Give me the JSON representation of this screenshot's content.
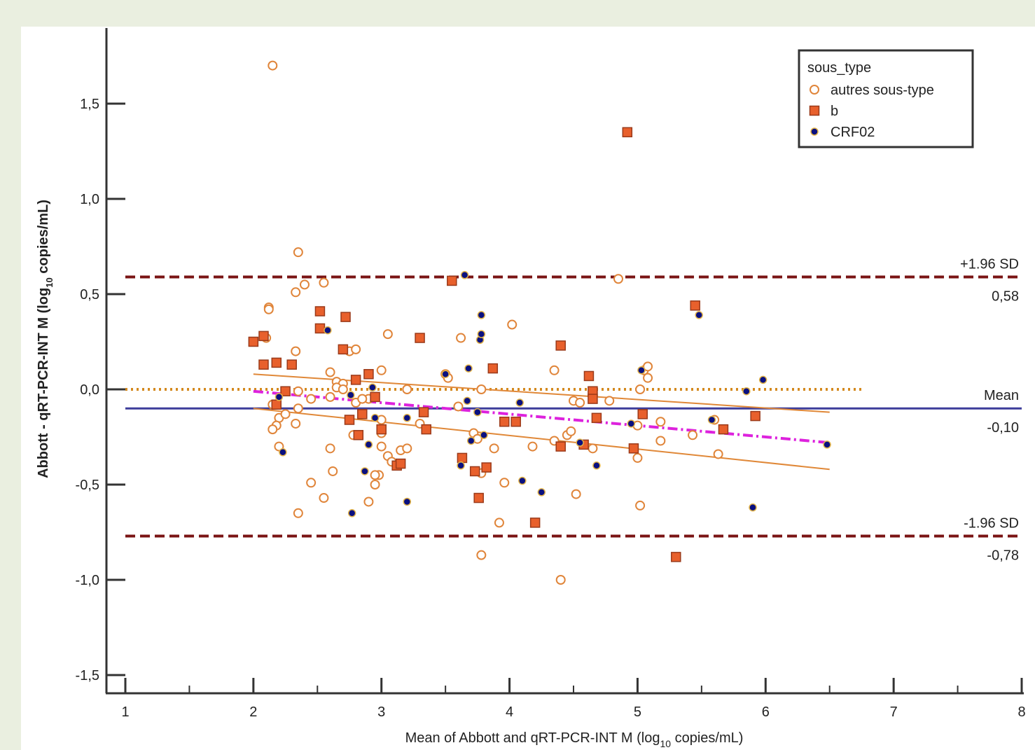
{
  "chart_data": {
    "type": "scatter",
    "title": "",
    "xlabel": "Mean of Abbott and qRT-PCR-INT M",
    "xlabel_unit": "(log",
    "xlabel_sub": "10",
    "xlabel_unit_end": " copies/mL)",
    "ylabel": "Abbott - qRT-PCR-INT M",
    "ylabel_unit": "(log",
    "ylabel_sub": "10",
    "ylabel_unit_end": " copies/mL)",
    "xlim": [
      1,
      8
    ],
    "ylim": [
      -1.6,
      1.9
    ],
    "x_ticks": [
      1,
      2,
      3,
      4,
      5,
      6,
      7,
      8
    ],
    "x_tick_labels": [
      "1",
      "2",
      "3",
      "4",
      "5",
      "6",
      "7",
      "8"
    ],
    "y_ticks": [
      -1.5,
      -1.0,
      -0.5,
      0.0,
      0.5,
      1.0,
      1.5
    ],
    "y_tick_labels": [
      "-1,5",
      "-1,0",
      "-0,5",
      "0,0",
      "0,5",
      "1,0",
      "1,5"
    ],
    "grid": false,
    "legend": {
      "title": "sous_type",
      "placement": "top-right",
      "entries": [
        {
          "label": "autres sous-type",
          "marker": "open-circle",
          "color": "#e0853a"
        },
        {
          "label": "b",
          "marker": "square",
          "color": "#e8602c"
        },
        {
          "label": "CRF02",
          "marker": "dot",
          "color": "#0a1080"
        }
      ]
    },
    "reference_lines": [
      {
        "name": "upper",
        "y": 0.59,
        "x_range": [
          1,
          8
        ],
        "style": "dashed",
        "color": "#7a1414",
        "label_top": "+1.96 SD",
        "label_bottom": "0,58"
      },
      {
        "name": "mean",
        "y": -0.1,
        "x_range": [
          1,
          8
        ],
        "style": "solid",
        "color": "#3d3d9a",
        "label_top": "Mean",
        "label_bottom": "-0,10"
      },
      {
        "name": "lower",
        "y": -0.77,
        "x_range": [
          1,
          8
        ],
        "style": "dashed",
        "color": "#7a1414",
        "label_top": "-1.96 SD",
        "label_bottom": "-0,78"
      },
      {
        "name": "zero",
        "y": 0.0,
        "x_range": [
          1,
          6.75
        ],
        "style": "dotted",
        "color": "#d4891e"
      }
    ],
    "fit_lines": [
      {
        "name": "regression",
        "x": [
          2.0,
          6.5
        ],
        "y": [
          -0.01,
          -0.28
        ],
        "style": "dash-dot",
        "color": "#dd22dd"
      },
      {
        "name": "upper-band",
        "x": [
          2.0,
          6.5
        ],
        "y": [
          0.08,
          -0.12
        ],
        "style": "solid",
        "color": "#e08838"
      },
      {
        "name": "lower-band",
        "x": [
          2.0,
          6.5
        ],
        "y": [
          -0.1,
          -0.42
        ],
        "style": "solid",
        "color": "#e08838"
      }
    ],
    "series": [
      {
        "name": "autres sous-type",
        "marker": "open-circle",
        "points": [
          [
            2.15,
            1.7
          ],
          [
            2.35,
            0.72
          ],
          [
            2.12,
            0.43
          ],
          [
            2.12,
            0.42
          ],
          [
            2.33,
            0.51
          ],
          [
            2.4,
            0.55
          ],
          [
            2.55,
            0.56
          ],
          [
            2.33,
            0.2
          ],
          [
            2.1,
            0.27
          ],
          [
            2.6,
            0.09
          ],
          [
            2.65,
            0.04
          ],
          [
            2.7,
            0.03
          ],
          [
            2.65,
            0.01
          ],
          [
            2.7,
            0.0
          ],
          [
            2.75,
            0.2
          ],
          [
            2.8,
            0.21
          ],
          [
            3.0,
            0.1
          ],
          [
            3.05,
            0.29
          ],
          [
            3.2,
            0.0
          ],
          [
            2.35,
            -0.01
          ],
          [
            2.45,
            -0.05
          ],
          [
            2.6,
            -0.04
          ],
          [
            2.8,
            -0.07
          ],
          [
            2.9,
            -0.05
          ],
          [
            3.0,
            -0.16
          ],
          [
            2.15,
            -0.08
          ],
          [
            2.2,
            -0.15
          ],
          [
            2.25,
            -0.13
          ],
          [
            2.18,
            -0.19
          ],
          [
            2.15,
            -0.21
          ],
          [
            2.35,
            -0.1
          ],
          [
            2.33,
            -0.18
          ],
          [
            2.2,
            -0.3
          ],
          [
            2.35,
            -0.65
          ],
          [
            2.45,
            -0.49
          ],
          [
            2.55,
            -0.57
          ],
          [
            2.6,
            -0.31
          ],
          [
            2.62,
            -0.43
          ],
          [
            2.78,
            -0.24
          ],
          [
            2.85,
            -0.05
          ],
          [
            2.9,
            -0.59
          ],
          [
            2.95,
            -0.5
          ],
          [
            2.98,
            -0.45
          ],
          [
            2.95,
            -0.45
          ],
          [
            3.0,
            -0.23
          ],
          [
            3.0,
            -0.3
          ],
          [
            3.05,
            -0.35
          ],
          [
            3.08,
            -0.38
          ],
          [
            3.15,
            -0.32
          ],
          [
            3.2,
            -0.31
          ],
          [
            3.3,
            -0.18
          ],
          [
            3.5,
            0.08
          ],
          [
            3.52,
            0.06
          ],
          [
            3.6,
            -0.09
          ],
          [
            3.62,
            0.27
          ],
          [
            3.72,
            -0.23
          ],
          [
            3.75,
            -0.26
          ],
          [
            3.78,
            0.0
          ],
          [
            3.78,
            -0.44
          ],
          [
            3.78,
            -0.87
          ],
          [
            3.88,
            -0.31
          ],
          [
            3.92,
            -0.7
          ],
          [
            3.96,
            -0.49
          ],
          [
            4.02,
            0.34
          ],
          [
            4.18,
            -0.3
          ],
          [
            4.35,
            0.1
          ],
          [
            4.35,
            -0.27
          ],
          [
            4.4,
            -1.0
          ],
          [
            4.45,
            -0.24
          ],
          [
            4.48,
            -0.22
          ],
          [
            4.5,
            -0.06
          ],
          [
            4.55,
            -0.07
          ],
          [
            4.52,
            -0.55
          ],
          [
            4.65,
            -0.31
          ],
          [
            4.78,
            -0.06
          ],
          [
            4.85,
            0.58
          ],
          [
            5.0,
            -0.19
          ],
          [
            5.0,
            -0.36
          ],
          [
            5.02,
            0.0
          ],
          [
            5.02,
            -0.61
          ],
          [
            5.05,
            0.1
          ],
          [
            5.08,
            0.12
          ],
          [
            5.08,
            0.06
          ],
          [
            5.18,
            -0.17
          ],
          [
            5.18,
            -0.27
          ],
          [
            5.43,
            -0.24
          ],
          [
            5.6,
            -0.16
          ],
          [
            5.63,
            -0.34
          ]
        ]
      },
      {
        "name": "b",
        "marker": "square",
        "points": [
          [
            2.0,
            0.25
          ],
          [
            2.08,
            0.28
          ],
          [
            2.08,
            0.13
          ],
          [
            2.18,
            0.14
          ],
          [
            2.3,
            0.13
          ],
          [
            2.18,
            -0.08
          ],
          [
            2.25,
            -0.01
          ],
          [
            2.52,
            0.41
          ],
          [
            2.52,
            0.32
          ],
          [
            2.72,
            0.38
          ],
          [
            2.7,
            0.21
          ],
          [
            2.8,
            0.05
          ],
          [
            2.9,
            0.08
          ],
          [
            2.85,
            -0.13
          ],
          [
            2.75,
            -0.16
          ],
          [
            2.82,
            -0.24
          ],
          [
            2.95,
            -0.04
          ],
          [
            3.0,
            -0.21
          ],
          [
            3.12,
            -0.4
          ],
          [
            3.15,
            -0.39
          ],
          [
            3.3,
            0.27
          ],
          [
            3.33,
            -0.12
          ],
          [
            3.35,
            -0.21
          ],
          [
            3.55,
            0.57
          ],
          [
            3.63,
            -0.36
          ],
          [
            3.73,
            -0.43
          ],
          [
            3.76,
            -0.57
          ],
          [
            3.82,
            -0.41
          ],
          [
            3.87,
            0.11
          ],
          [
            3.96,
            -0.17
          ],
          [
            4.05,
            -0.17
          ],
          [
            4.2,
            -0.7
          ],
          [
            4.4,
            0.23
          ],
          [
            4.4,
            -0.3
          ],
          [
            4.58,
            -0.29
          ],
          [
            4.62,
            0.07
          ],
          [
            4.65,
            -0.01
          ],
          [
            4.65,
            -0.05
          ],
          [
            4.68,
            -0.15
          ],
          [
            4.92,
            1.35
          ],
          [
            4.97,
            -0.31
          ],
          [
            5.04,
            -0.13
          ],
          [
            5.3,
            -0.88
          ],
          [
            5.45,
            0.44
          ],
          [
            5.67,
            -0.21
          ],
          [
            5.92,
            -0.14
          ]
        ]
      },
      {
        "name": "CRF02",
        "marker": "dot",
        "points": [
          [
            2.2,
            -0.04
          ],
          [
            2.23,
            -0.33
          ],
          [
            2.58,
            0.31
          ],
          [
            2.76,
            -0.03
          ],
          [
            2.77,
            -0.65
          ],
          [
            2.87,
            -0.43
          ],
          [
            2.9,
            -0.29
          ],
          [
            2.93,
            0.01
          ],
          [
            2.95,
            -0.15
          ],
          [
            3.2,
            -0.15
          ],
          [
            3.2,
            -0.59
          ],
          [
            3.5,
            0.08
          ],
          [
            3.62,
            -0.4
          ],
          [
            3.65,
            0.6
          ],
          [
            3.67,
            -0.06
          ],
          [
            3.68,
            0.11
          ],
          [
            3.7,
            -0.27
          ],
          [
            3.75,
            -0.12
          ],
          [
            3.77,
            0.26
          ],
          [
            3.78,
            0.29
          ],
          [
            3.78,
            0.39
          ],
          [
            3.8,
            -0.24
          ],
          [
            4.08,
            -0.07
          ],
          [
            4.1,
            -0.48
          ],
          [
            4.25,
            -0.54
          ],
          [
            4.55,
            -0.28
          ],
          [
            4.68,
            -0.4
          ],
          [
            4.95,
            -0.18
          ],
          [
            5.03,
            0.1
          ],
          [
            5.48,
            0.39
          ],
          [
            5.58,
            -0.16
          ],
          [
            5.85,
            -0.01
          ],
          [
            5.9,
            -0.62
          ],
          [
            5.98,
            0.05
          ],
          [
            6.48,
            -0.29
          ]
        ]
      }
    ]
  }
}
